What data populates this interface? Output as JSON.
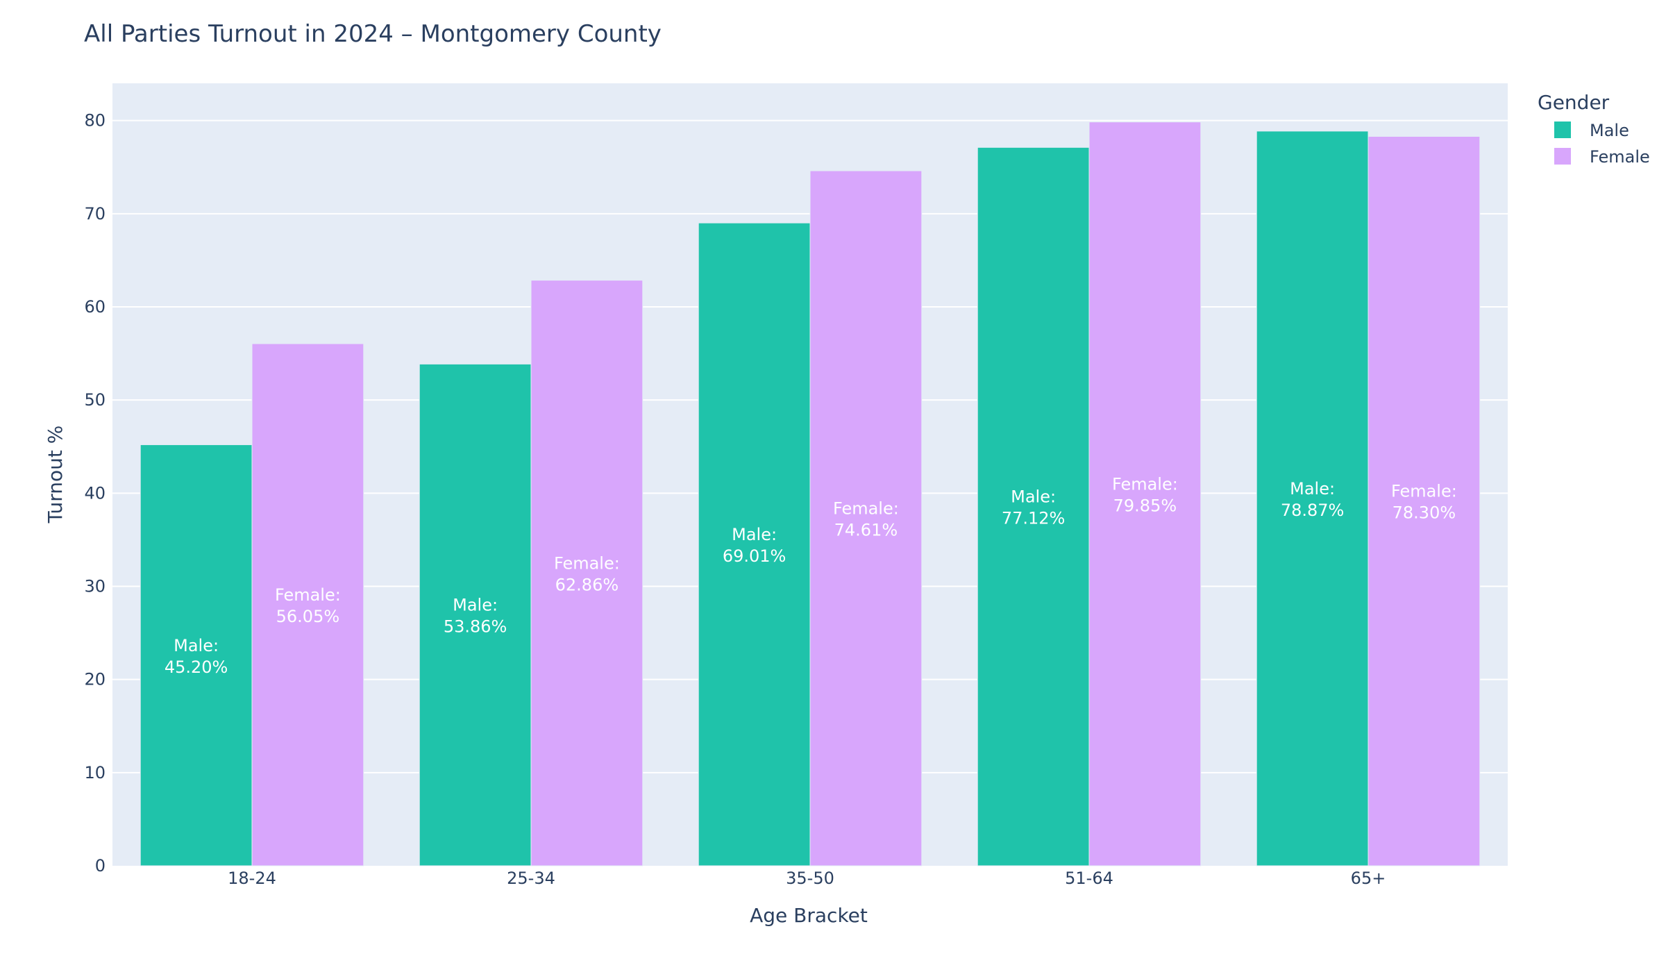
{
  "colors": {
    "plot_background": "#e5ecf6",
    "gridline": "#ffffff",
    "text": "#2a3f5f",
    "label_text": "#ffffff"
  },
  "chart_data": {
    "type": "bar",
    "barmode": "grouped",
    "title": "All Parties Turnout in 2024 – Montgomery County",
    "xlabel": "Age Bracket",
    "ylabel": "Turnout %",
    "categories": [
      "18-24",
      "25-34",
      "35-50",
      "51-64",
      "65+"
    ],
    "ylim": [
      0,
      84
    ],
    "yticks": [
      0,
      10,
      20,
      30,
      40,
      50,
      60,
      70,
      80
    ],
    "grid": true,
    "legend": {
      "title": "Gender",
      "position": "top-right outside plot"
    },
    "series": [
      {
        "name": "Male",
        "color": "#1fc3aa",
        "values": [
          45.2,
          53.86,
          69.01,
          77.12,
          78.87
        ],
        "labels": [
          "45.20%",
          "53.86%",
          "69.01%",
          "77.12%",
          "78.87%"
        ],
        "label_prefix": "Male:"
      },
      {
        "name": "Female",
        "color": "#d8a6fc",
        "values": [
          56.05,
          62.86,
          74.61,
          79.85,
          78.3
        ],
        "labels": [
          "56.05%",
          "62.86%",
          "74.61%",
          "79.85%",
          "78.30%"
        ],
        "label_prefix": "Female:"
      }
    ]
  }
}
